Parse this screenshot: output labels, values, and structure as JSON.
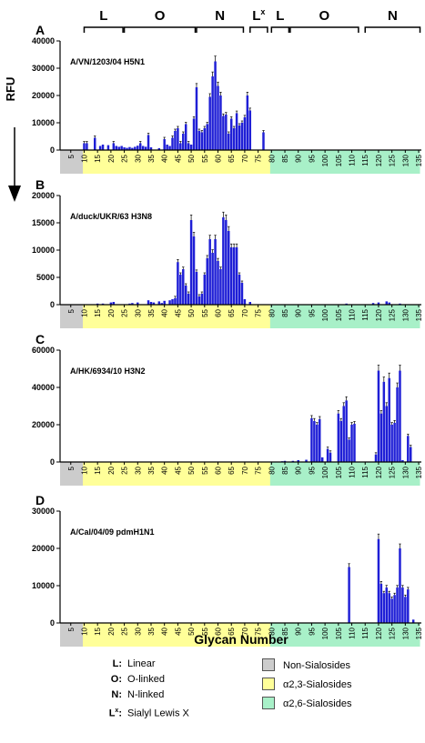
{
  "figure": {
    "y_axis_label": "RFU",
    "x_axis_label": "Glycan Number",
    "top_categories": [
      {
        "label": "L",
        "from": 10,
        "to": 24
      },
      {
        "label": "O",
        "from": 25,
        "to": 51
      },
      {
        "label": "N",
        "from": 52,
        "to": 69
      },
      {
        "label": "L",
        "sup": "x",
        "from": 72,
        "to": 78
      },
      {
        "label": "L",
        "from": 80,
        "to": 86
      },
      {
        "label": "O",
        "from": 87,
        "to": 112
      },
      {
        "label": "N",
        "from": 115,
        "to": 135
      }
    ],
    "legend_left": [
      {
        "key": "L:",
        "text": "Linear"
      },
      {
        "key": "O:",
        "text": "O-linked"
      },
      {
        "key": "N:",
        "text": "N-linked"
      },
      {
        "key": "L",
        "key_sup": "x",
        "text": "Sialyl Lewis X"
      }
    ],
    "legend_right": [
      {
        "text": "Non-Sialosides",
        "color": "#cccccc"
      },
      {
        "text": "α2,3-Sialosides",
        "color": "#ffff99"
      },
      {
        "text": "α2,6-Sialosides",
        "color": "#a8f0c8"
      }
    ],
    "colors": {
      "bar": "#1f1fd6",
      "non_sialosides": "#cccccc",
      "a23": "#ffff99",
      "a26": "#a8f0c8"
    }
  },
  "chart_data": [
    {
      "type": "bar",
      "panel": "A",
      "strain": "A/VN/1203/04 H5N1",
      "ylim": [
        0,
        40000
      ],
      "yticks": [
        0,
        10000,
        20000,
        30000,
        40000
      ],
      "xticks": [
        5,
        10,
        15,
        20,
        25,
        30,
        35,
        40,
        45,
        50,
        55,
        60,
        65,
        70,
        75,
        80,
        85,
        90,
        95,
        100,
        105,
        110,
        115,
        120,
        125,
        130,
        135
      ],
      "x_range": [
        1,
        135
      ],
      "regions": [
        {
          "name": "Non-Sialosides",
          "from": 1,
          "to": 9.5
        },
        {
          "name": "α2,3-Sialosides",
          "from": 9.5,
          "to": 79.5
        },
        {
          "name": "α2,6-Sialosides",
          "from": 79.5,
          "to": 135
        }
      ],
      "points": [
        [
          10,
          2500
        ],
        [
          11,
          2500
        ],
        [
          14,
          4500
        ],
        [
          16,
          1500
        ],
        [
          17,
          2000
        ],
        [
          19,
          1800
        ],
        [
          21,
          2500
        ],
        [
          22,
          1500
        ],
        [
          23,
          1200
        ],
        [
          24,
          1500
        ],
        [
          25,
          1000
        ],
        [
          26,
          800
        ],
        [
          27,
          1100
        ],
        [
          28,
          800
        ],
        [
          29,
          1200
        ],
        [
          30,
          1600
        ],
        [
          31,
          2500
        ],
        [
          32,
          1500
        ],
        [
          33,
          1200
        ],
        [
          34,
          5500
        ],
        [
          35,
          1000
        ],
        [
          38,
          700
        ],
        [
          40,
          4000
        ],
        [
          41,
          2000
        ],
        [
          42,
          1500
        ],
        [
          43,
          4500
        ],
        [
          44,
          7000
        ],
        [
          45,
          8000
        ],
        [
          46,
          2500
        ],
        [
          47,
          6000
        ],
        [
          48,
          9500
        ],
        [
          49,
          2500
        ],
        [
          50,
          2000
        ],
        [
          51,
          11500
        ],
        [
          52,
          23000
        ],
        [
          53,
          7000
        ],
        [
          54,
          6500
        ],
        [
          55,
          8000
        ],
        [
          56,
          9500
        ],
        [
          57,
          19500
        ],
        [
          58,
          27000
        ],
        [
          59,
          32500
        ],
        [
          60,
          23500
        ],
        [
          61,
          20000
        ],
        [
          62,
          12500
        ],
        [
          63,
          13000
        ],
        [
          64,
          6000
        ],
        [
          65,
          11500
        ],
        [
          66,
          8000
        ],
        [
          67,
          13500
        ],
        [
          68,
          9000
        ],
        [
          69,
          10000
        ],
        [
          70,
          12000
        ],
        [
          71,
          20000
        ],
        [
          72,
          14500
        ],
        [
          77,
          6500
        ]
      ]
    },
    {
      "type": "bar",
      "panel": "B",
      "strain": "A/duck/UKR/63 H3N8",
      "ylim": [
        0,
        20000
      ],
      "yticks": [
        0,
        5000,
        10000,
        15000,
        20000
      ],
      "xticks": [
        5,
        10,
        15,
        20,
        25,
        30,
        35,
        40,
        45,
        50,
        55,
        60,
        65,
        70,
        75,
        80,
        85,
        90,
        95,
        100,
        105,
        110,
        115,
        120,
        125,
        130,
        135
      ],
      "x_range": [
        1,
        135
      ],
      "regions": [
        {
          "name": "Non-Sialosides",
          "from": 1,
          "to": 9.5
        },
        {
          "name": "α2,3-Sialosides",
          "from": 9.5,
          "to": 79.5
        },
        {
          "name": "α2,6-Sialosides",
          "from": 79.5,
          "to": 135
        }
      ],
      "points": [
        [
          15,
          200
        ],
        [
          17,
          200
        ],
        [
          20,
          400
        ],
        [
          21,
          500
        ],
        [
          27,
          200
        ],
        [
          28,
          300
        ],
        [
          30,
          400
        ],
        [
          34,
          800
        ],
        [
          35,
          500
        ],
        [
          36,
          400
        ],
        [
          38,
          600
        ],
        [
          39,
          300
        ],
        [
          40,
          700
        ],
        [
          42,
          800
        ],
        [
          43,
          1000
        ],
        [
          44,
          1200
        ],
        [
          45,
          7800
        ],
        [
          46,
          5500
        ],
        [
          47,
          6500
        ],
        [
          48,
          3500
        ],
        [
          49,
          2000
        ],
        [
          50,
          15500
        ],
        [
          51,
          12500
        ],
        [
          52,
          6000
        ],
        [
          53,
          1500
        ],
        [
          54,
          2000
        ],
        [
          55,
          5500
        ],
        [
          56,
          8500
        ],
        [
          57,
          12000
        ],
        [
          58,
          9500
        ],
        [
          59,
          12000
        ],
        [
          60,
          8000
        ],
        [
          61,
          6500
        ],
        [
          62,
          16000
        ],
        [
          63,
          15500
        ],
        [
          64,
          13500
        ],
        [
          65,
          10500
        ],
        [
          66,
          10500
        ],
        [
          67,
          10500
        ],
        [
          68,
          5500
        ],
        [
          69,
          4000
        ],
        [
          70,
          1000
        ],
        [
          72,
          500
        ],
        [
          108,
          200
        ],
        [
          118,
          300
        ],
        [
          120,
          400
        ],
        [
          123,
          600
        ],
        [
          124,
          400
        ],
        [
          128,
          200
        ]
      ]
    },
    {
      "type": "bar",
      "panel": "C",
      "strain": "A/HK/6934/10 H3N2",
      "ylim": [
        0,
        60000
      ],
      "yticks": [
        0,
        20000,
        40000,
        60000
      ],
      "xticks": [
        5,
        10,
        15,
        20,
        25,
        30,
        35,
        40,
        45,
        50,
        55,
        60,
        65,
        70,
        75,
        80,
        85,
        90,
        95,
        100,
        105,
        110,
        115,
        120,
        125,
        130,
        135
      ],
      "x_range": [
        1,
        135
      ],
      "regions": [
        {
          "name": "Non-Sialosides",
          "from": 1,
          "to": 9.5
        },
        {
          "name": "α2,3-Sialosides",
          "from": 9.5,
          "to": 79.5
        },
        {
          "name": "α2,6-Sialosides",
          "from": 79.5,
          "to": 135
        }
      ],
      "points": [
        [
          84,
          400
        ],
        [
          85,
          600
        ],
        [
          88,
          600
        ],
        [
          90,
          1000
        ],
        [
          93,
          1200
        ],
        [
          95,
          23500
        ],
        [
          96,
          22000
        ],
        [
          97,
          20000
        ],
        [
          98,
          23000
        ],
        [
          99,
          2500
        ],
        [
          101,
          7000
        ],
        [
          102,
          5000
        ],
        [
          105,
          26000
        ],
        [
          106,
          22000
        ],
        [
          107,
          30000
        ],
        [
          108,
          33000
        ],
        [
          109,
          12000
        ],
        [
          110,
          20000
        ],
        [
          111,
          20500
        ],
        [
          119,
          4000
        ],
        [
          120,
          49000
        ],
        [
          121,
          26000
        ],
        [
          122,
          43000
        ],
        [
          123,
          30000
        ],
        [
          124,
          45000
        ],
        [
          125,
          20000
        ],
        [
          126,
          21000
        ],
        [
          127,
          40000
        ],
        [
          128,
          49000
        ],
        [
          129,
          1000
        ],
        [
          131,
          14000
        ],
        [
          132,
          8000
        ]
      ]
    },
    {
      "type": "bar",
      "panel": "D",
      "strain": "A/Cal/04/09 pdmH1N1",
      "ylim": [
        0,
        30000
      ],
      "yticks": [
        0,
        10000,
        20000,
        30000
      ],
      "xticks": [
        5,
        10,
        15,
        20,
        25,
        30,
        35,
        40,
        45,
        50,
        55,
        60,
        65,
        70,
        75,
        80,
        85,
        90,
        95,
        100,
        105,
        110,
        115,
        120,
        125,
        130,
        135
      ],
      "x_range": [
        1,
        135
      ],
      "regions": [
        {
          "name": "Non-Sialosides",
          "from": 1,
          "to": 9.5
        },
        {
          "name": "α2,3-Sialosides",
          "from": 9.5,
          "to": 79.5
        },
        {
          "name": "α2,6-Sialosides",
          "from": 79.5,
          "to": 135
        }
      ],
      "points": [
        [
          109,
          15000
        ],
        [
          120,
          22500
        ],
        [
          121,
          10500
        ],
        [
          122,
          8000
        ],
        [
          123,
          9500
        ],
        [
          124,
          8000
        ],
        [
          125,
          6500
        ],
        [
          126,
          7500
        ],
        [
          127,
          9500
        ],
        [
          128,
          20000
        ],
        [
          129,
          9500
        ],
        [
          130,
          7000
        ],
        [
          131,
          9000
        ],
        [
          133,
          900
        ]
      ]
    }
  ]
}
